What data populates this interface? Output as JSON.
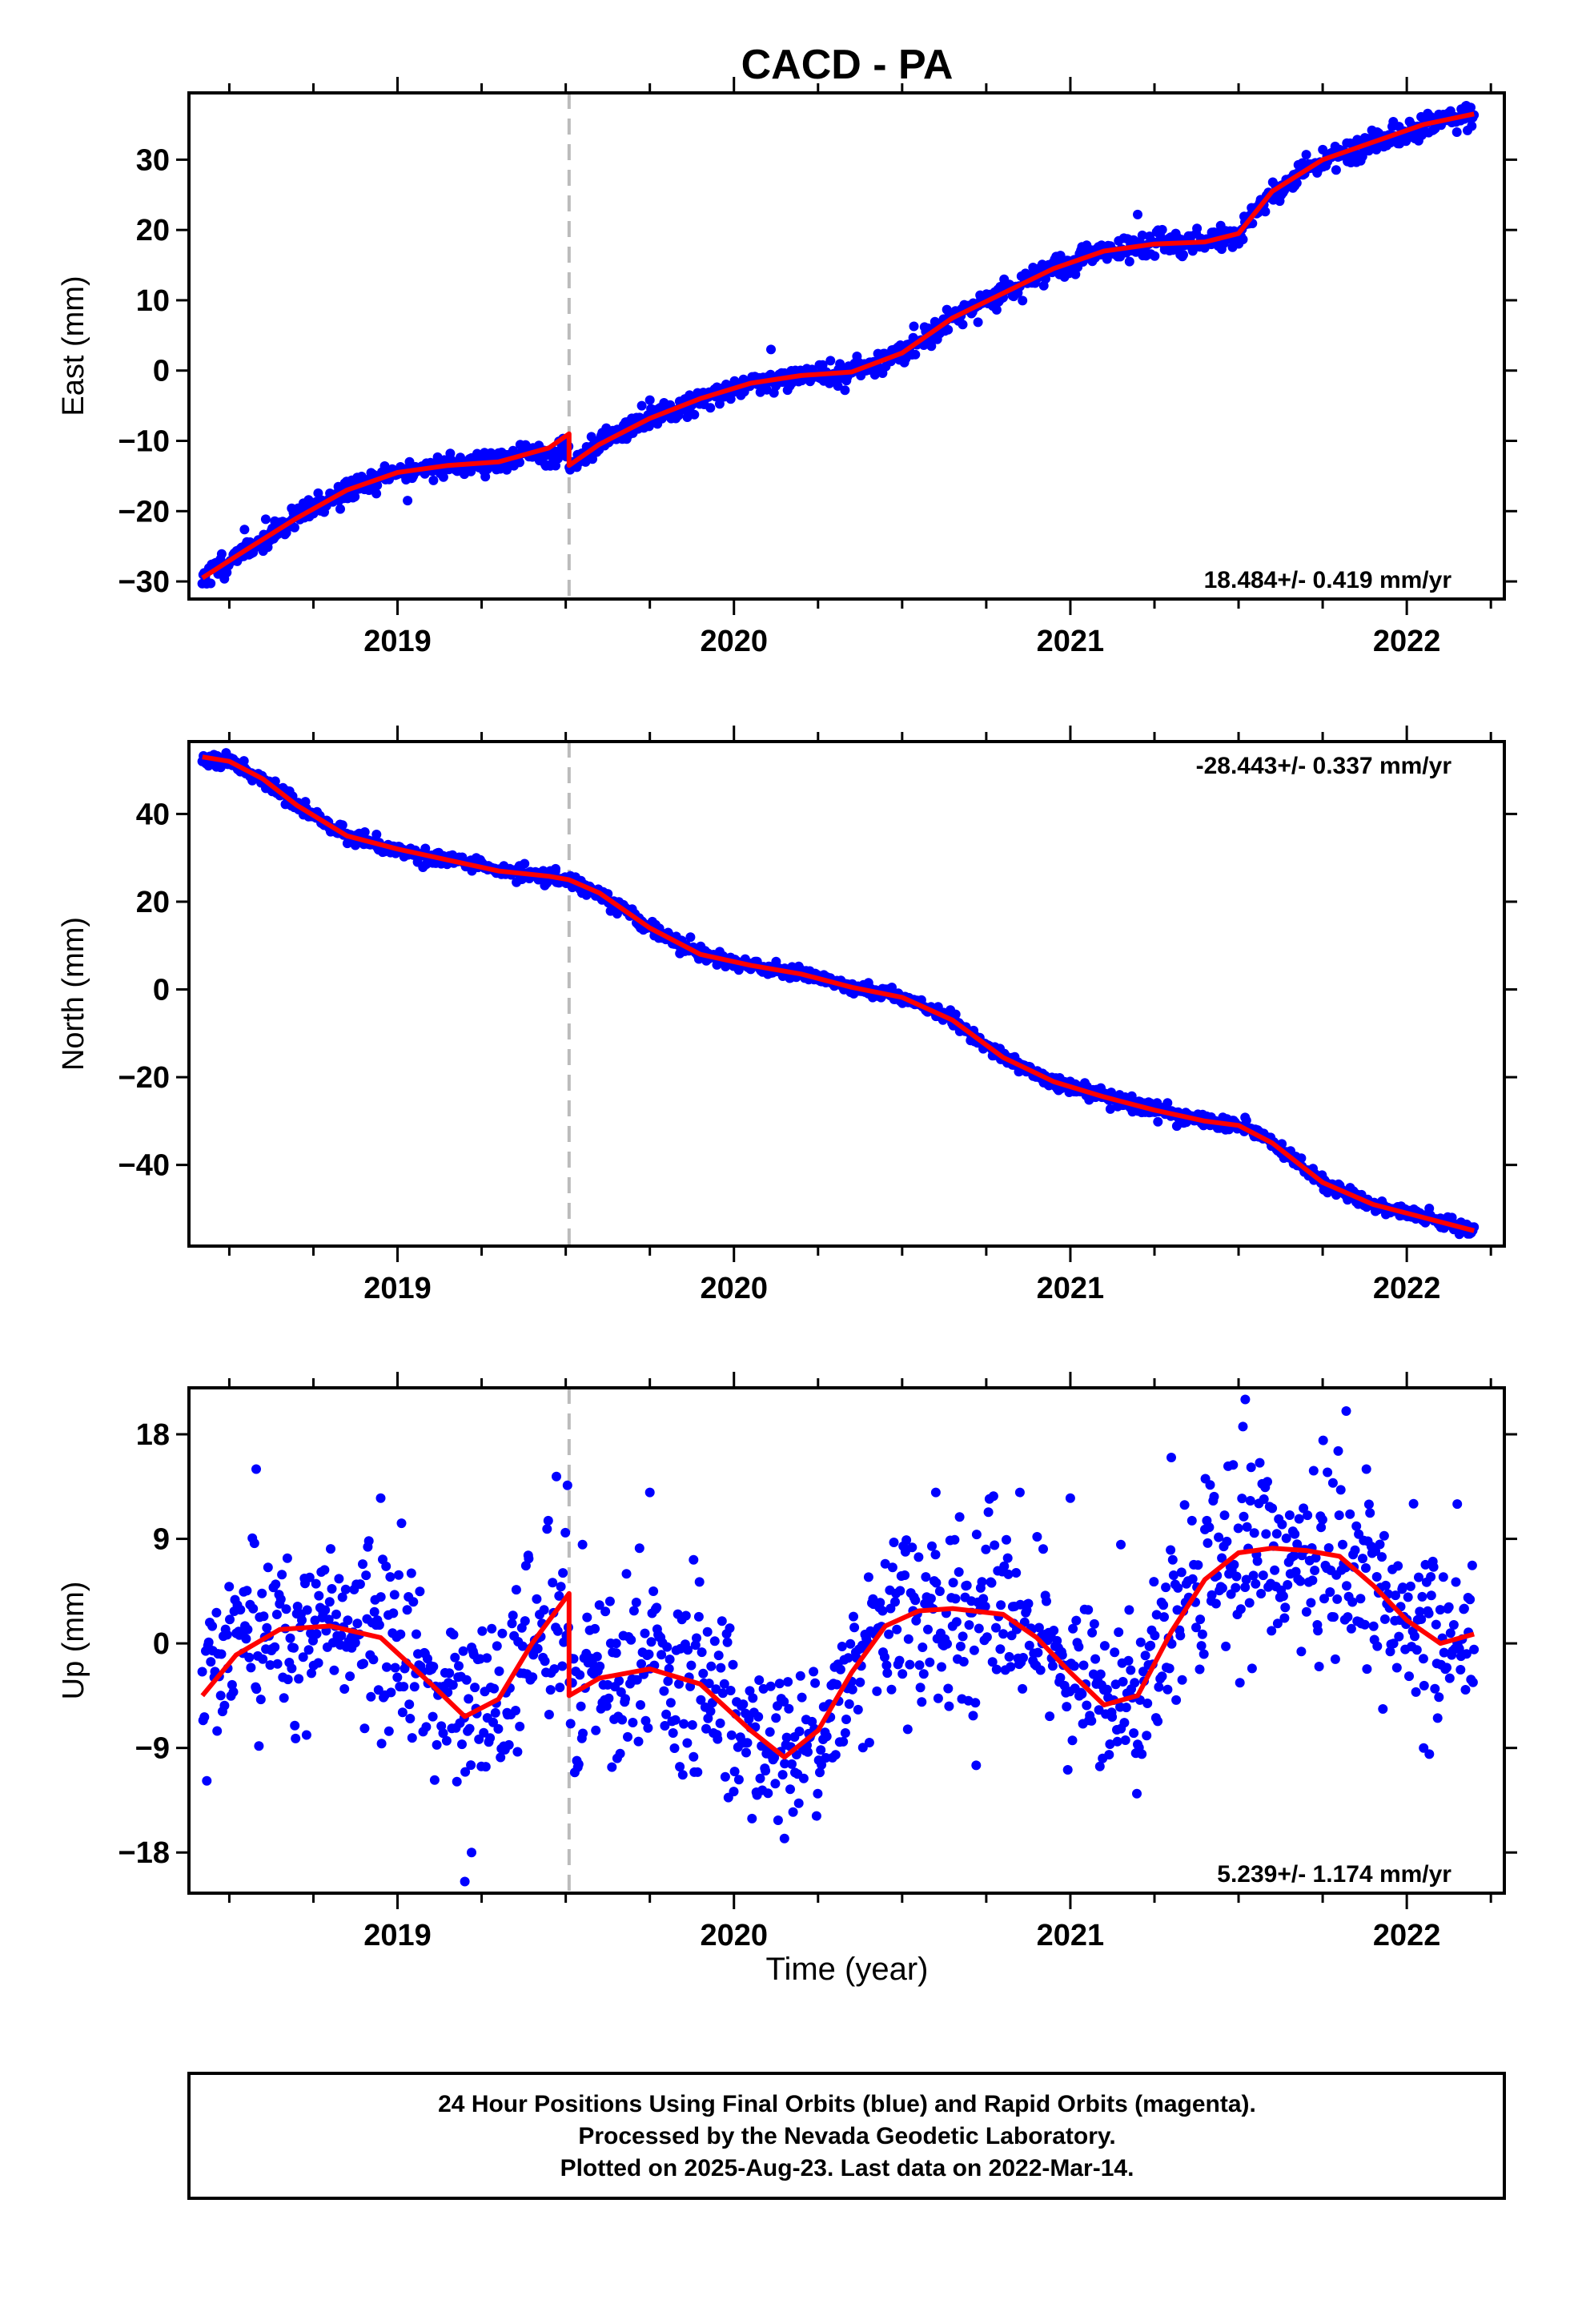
{
  "title": "CACD - PA",
  "note_lines": [
    "24 Hour Positions Using Final Orbits (blue) and Rapid Orbits (magenta).",
    "Processed by the Nevada Geodetic Laboratory.",
    "Plotted on 2025-Aug-23. Last data on 2022-Mar-14."
  ],
  "colors": {
    "data": "#0000ff",
    "model": "#ff0000",
    "step_line": "#bbbbbb",
    "frame": "#000000"
  },
  "chart_data": [
    {
      "type": "scatter",
      "ylabel": "East (mm)",
      "xlabel": "",
      "xlim": [
        2018.38,
        2022.29
      ],
      "ylim": [
        -32.5,
        39.5
      ],
      "yticks": [
        -30,
        -20,
        -10,
        0,
        10,
        20,
        30
      ],
      "xticks": [
        2019,
        2020,
        2021,
        2022
      ],
      "rate": "18.484+/- 0.419 mm/yr",
      "rate_position": "bottom-right",
      "step_epoch": 2019.51,
      "model_x": [
        2018.42,
        2018.55,
        2018.7,
        2018.85,
        2019.0,
        2019.15,
        2019.3,
        2019.45,
        2019.51,
        2019.51,
        2019.6,
        2019.75,
        2019.9,
        2020.05,
        2020.2,
        2020.35,
        2020.5,
        2020.65,
        2020.8,
        2020.95,
        2021.1,
        2021.25,
        2021.4,
        2021.5,
        2021.6,
        2021.75,
        2021.9,
        2022.05,
        2022.2
      ],
      "model_y": [
        -29.5,
        -25.5,
        -21.0,
        -17.0,
        -14.5,
        -13.5,
        -13.0,
        -11.0,
        -9.0,
        -13.5,
        -10.5,
        -6.8,
        -4.0,
        -1.8,
        -0.7,
        -0.2,
        2.5,
        7.5,
        11.0,
        14.5,
        17.0,
        18.0,
        18.3,
        19.5,
        25.5,
        30.0,
        32.5,
        35.0,
        36.5
      ],
      "scatter": 0.85,
      "outliers": [
        [
          2019.03,
          -18.5
        ],
        [
          2019.75,
          -4.2
        ],
        [
          2020.11,
          3.0
        ],
        [
          2020.33,
          -2.8
        ],
        [
          2021.2,
          22.2
        ],
        [
          2021.96,
          35.4
        ]
      ]
    },
    {
      "type": "scatter",
      "ylabel": "North (mm)",
      "xlabel": "",
      "xlim": [
        2018.38,
        2022.29
      ],
      "ylim": [
        -58.5,
        56.5
      ],
      "yticks": [
        -40,
        -20,
        0,
        20,
        40
      ],
      "xticks": [
        2019,
        2020,
        2021,
        2022
      ],
      "rate": "-28.443+/- 0.337 mm/yr",
      "rate_position": "top-right",
      "step_epoch": 2019.51,
      "model_x": [
        2018.42,
        2018.5,
        2018.6,
        2018.7,
        2018.85,
        2019.0,
        2019.15,
        2019.3,
        2019.45,
        2019.51,
        2019.6,
        2019.75,
        2019.9,
        2020.05,
        2020.2,
        2020.35,
        2020.5,
        2020.65,
        2020.8,
        2020.95,
        2021.1,
        2021.25,
        2021.4,
        2021.5,
        2021.6,
        2021.75,
        2021.9,
        2022.05,
        2022.2
      ],
      "model_y": [
        53.0,
        52.0,
        48.0,
        42.0,
        35.0,
        32.0,
        29.5,
        27.0,
        25.8,
        25.0,
        22.0,
        14.0,
        8.0,
        5.5,
        3.5,
        0.5,
        -1.8,
        -7.0,
        -15.5,
        -21.0,
        -24.5,
        -27.5,
        -30.0,
        -31.0,
        -35.0,
        -44.0,
        -49.0,
        -52.0,
        -55.0
      ],
      "scatter": 0.8,
      "outliers": [
        [
          2019.47,
          27.5
        ],
        [
          2020.4,
          1.5
        ],
        [
          2021.55,
          -32.5
        ]
      ]
    },
    {
      "type": "scatter",
      "ylabel": "Up (mm)",
      "xlabel": "Time (year)",
      "xlim": [
        2018.38,
        2022.29
      ],
      "ylim": [
        -21.5,
        22.0
      ],
      "yticks": [
        -18,
        -9,
        0,
        9,
        18
      ],
      "xticks": [
        2019,
        2020,
        2021,
        2022
      ],
      "rate": "5.239+/- 1.174 mm/yr",
      "rate_position": "bottom-right",
      "step_epoch": 2019.51,
      "model_x": [
        2018.42,
        2018.52,
        2018.65,
        2018.8,
        2018.95,
        2019.1,
        2019.2,
        2019.3,
        2019.4,
        2019.51,
        2019.51,
        2019.6,
        2019.75,
        2019.9,
        2020.05,
        2020.15,
        2020.25,
        2020.35,
        2020.45,
        2020.55,
        2020.65,
        2020.8,
        2020.9,
        2021.0,
        2021.1,
        2021.2,
        2021.3,
        2021.4,
        2021.5,
        2021.6,
        2021.7,
        2021.8,
        2021.9,
        2022.0,
        2022.1,
        2022.2
      ],
      "model_y": [
        -4.5,
        -1.0,
        1.2,
        1.5,
        0.5,
        -3.5,
        -6.3,
        -4.8,
        0.0,
        4.3,
        -4.5,
        -3.0,
        -2.2,
        -3.5,
        -7.5,
        -9.8,
        -7.5,
        -2.5,
        1.5,
        2.8,
        3.0,
        2.5,
        0.5,
        -2.5,
        -5.3,
        -4.5,
        1.0,
        5.5,
        7.8,
        8.2,
        8.0,
        7.5,
        5.0,
        2.0,
        0.0,
        0.8
      ],
      "scatter": 3.8,
      "outliers": [
        [
          2018.58,
          15.0
        ],
        [
          2018.95,
          12.5
        ],
        [
          2019.2,
          -20.5
        ],
        [
          2019.22,
          -18.0
        ],
        [
          2019.55,
          8.5
        ],
        [
          2019.65,
          0.0
        ],
        [
          2019.75,
          13.0
        ],
        [
          2019.88,
          7.2
        ],
        [
          2020.15,
          -16.8
        ],
        [
          2020.6,
          13.0
        ],
        [
          2020.72,
          -10.5
        ],
        [
          2020.85,
          13.0
        ],
        [
          2021.0,
          12.5
        ],
        [
          2021.15,
          8.5
        ],
        [
          2021.3,
          16.0
        ],
        [
          2021.52,
          21.0
        ],
        [
          2021.82,
          20.0
        ],
        [
          2021.88,
          15.0
        ],
        [
          2022.05,
          -9.0
        ],
        [
          2022.15,
          12.0
        ]
      ]
    }
  ]
}
